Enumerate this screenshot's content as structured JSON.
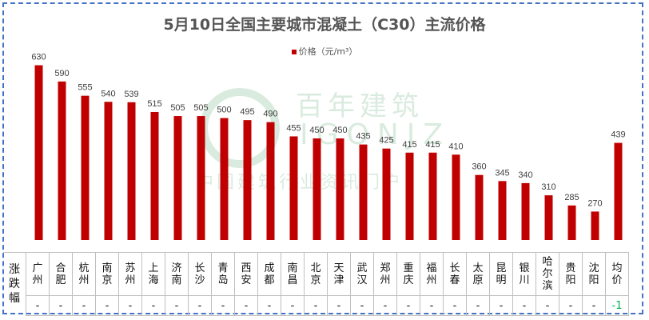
{
  "chart_data": {
    "type": "bar",
    "title": "5月10日全国主要城市混凝土（C30）主流价格",
    "legend": {
      "position": "top",
      "entries": [
        "价格（元/m³）"
      ]
    },
    "categories": [
      "广州",
      "合肥",
      "杭州",
      "南京",
      "苏州",
      "上海",
      "济南",
      "长沙",
      "青岛",
      "西安",
      "成都",
      "南昌",
      "北京",
      "天津",
      "武汉",
      "郑州",
      "重庆",
      "福州",
      "长春",
      "太原",
      "昆明",
      "银川",
      "哈尔滨",
      "贵阳",
      "沈阳",
      "均价"
    ],
    "series": [
      {
        "name": "价格（元/m³）",
        "color": "#c00000",
        "values": [
          630,
          590,
          555,
          540,
          539,
          515,
          505,
          505,
          500,
          495,
          490,
          455,
          450,
          450,
          435,
          425,
          415,
          415,
          410,
          360,
          345,
          340,
          310,
          285,
          270,
          439
        ]
      }
    ],
    "ylim": [
      200,
      700
    ],
    "grid": false,
    "data_labels": true
  },
  "table": {
    "row_label": "涨跌幅",
    "changes": [
      "-",
      "-",
      "-",
      "-",
      "-",
      "-",
      "-",
      "-",
      "-",
      "-",
      "-",
      "-",
      "-",
      "-",
      "-",
      "-",
      "-",
      "-",
      "-",
      "-",
      "-",
      "-",
      "-",
      "-",
      "-",
      "-1"
    ]
  },
  "watermark": {
    "logo_text": "百年建筑",
    "latin": "IGONJZ",
    "slogan": "中国建筑行业资讯门户"
  },
  "colors": {
    "bar": "#c00000",
    "border": "#4472c4",
    "down": "#00b050"
  }
}
